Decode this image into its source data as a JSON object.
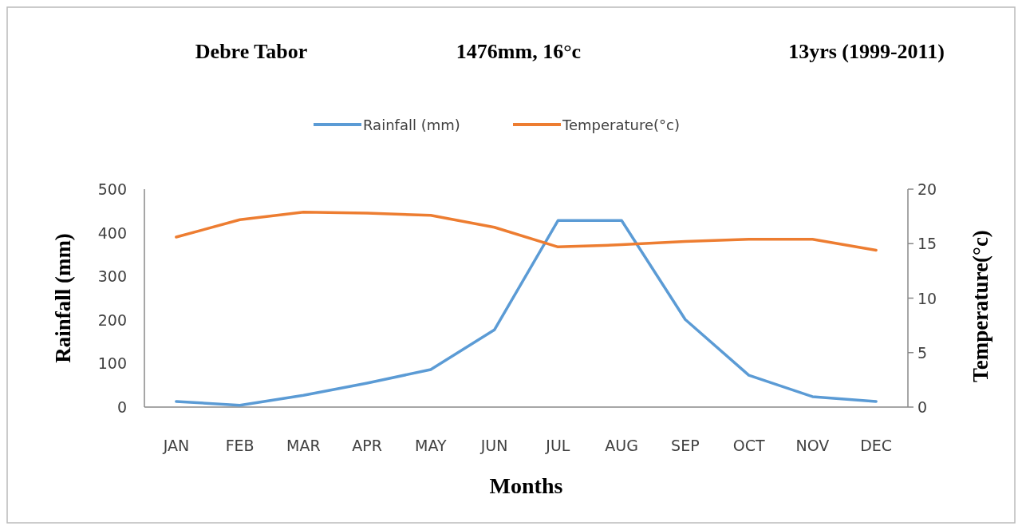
{
  "chart_data": {
    "type": "line",
    "title": "Debre Tabor",
    "annotations": [
      "1476mm, 16°c",
      "13yrs (1999-2011)"
    ],
    "xlabel": "Months",
    "ylabel": "Rainfall (mm)",
    "y2label": "Temperature(°c)",
    "categories": [
      "JAN",
      "FEB",
      "MAR",
      "APR",
      "MAY",
      "JUN",
      "JUL",
      "AUG",
      "SEP",
      "OCT",
      "NOV",
      "DEC"
    ],
    "series": [
      {
        "name": "Rainfall (mm)",
        "color": "#5b9bd5",
        "values": [
          13,
          4,
          27,
          55,
          86,
          177,
          428,
          428,
          201,
          73,
          24,
          13
        ]
      },
      {
        "name": "Temperature(°c)",
        "color": "#ed7d31",
        "axis": "y2",
        "values": [
          15.6,
          17.2,
          17.9,
          17.8,
          17.6,
          16.5,
          14.7,
          14.9,
          15.2,
          15.4,
          15.4,
          14.4
        ]
      }
    ],
    "ylim": [
      0,
      500
    ],
    "yticks": [
      0,
      100,
      200,
      300,
      400,
      500
    ],
    "y2lim": [
      0,
      20
    ],
    "y2ticks": [
      0,
      5,
      10,
      15,
      20
    ],
    "legend": "top",
    "grid": false,
    "marker": "none",
    "line_style": "solid"
  }
}
